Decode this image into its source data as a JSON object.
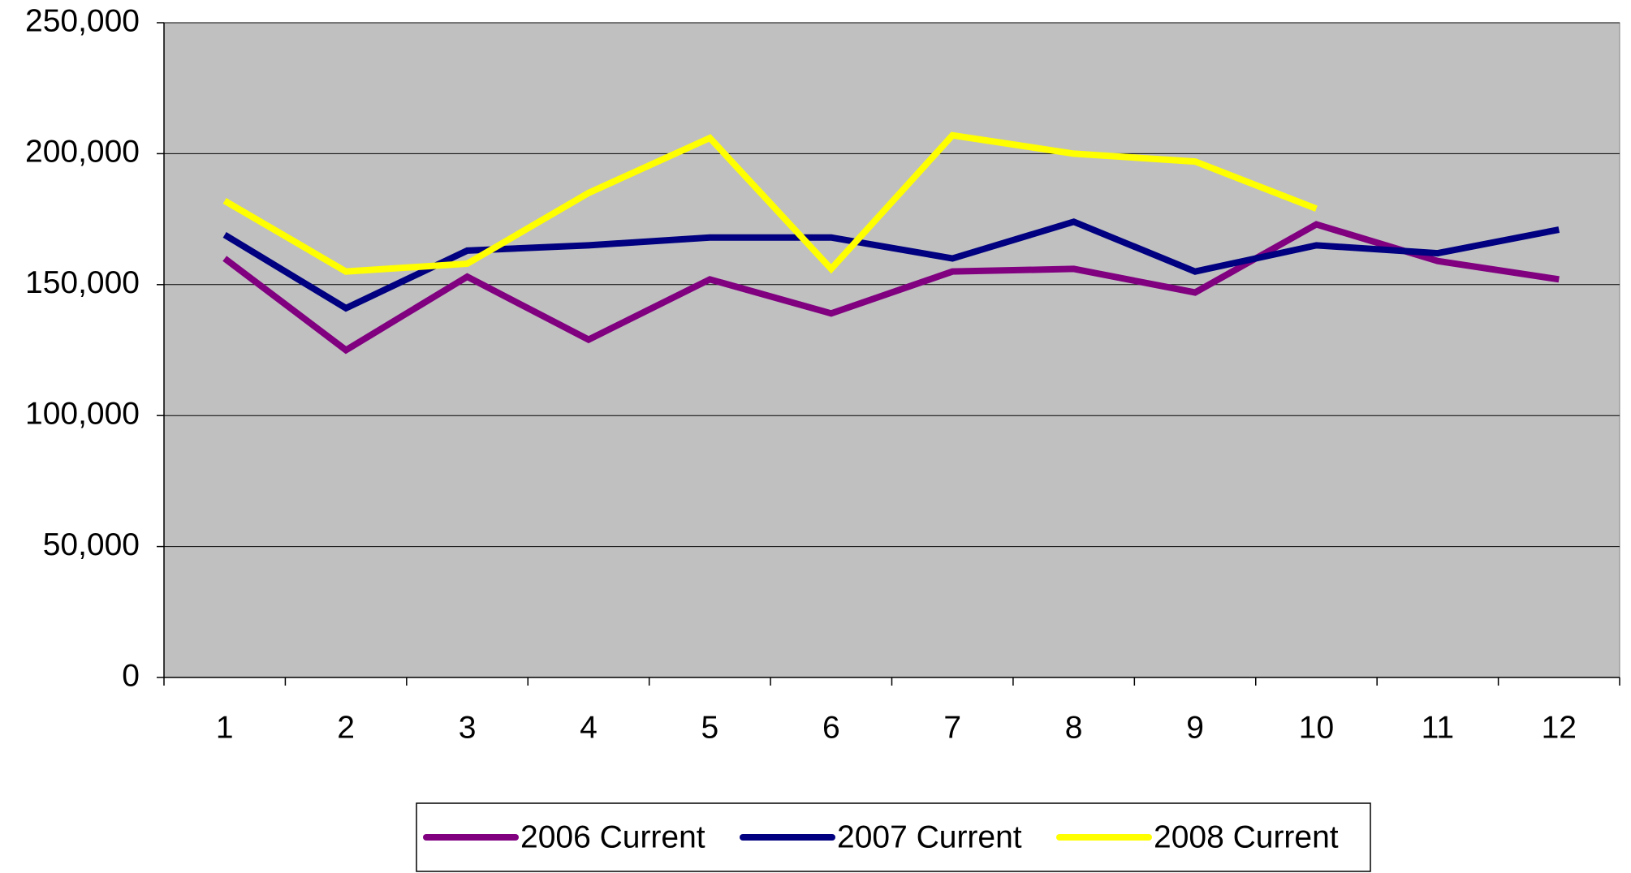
{
  "chart_data": {
    "type": "line",
    "categories": [
      "1",
      "2",
      "3",
      "4",
      "5",
      "6",
      "7",
      "8",
      "9",
      "10",
      "11",
      "12"
    ],
    "series": [
      {
        "name": "2006 Current",
        "color": "#800080",
        "values": [
          160000,
          125000,
          153000,
          129000,
          152000,
          139000,
          155000,
          156000,
          147000,
          173000,
          159000,
          152000
        ]
      },
      {
        "name": "2007 Current",
        "color": "#000080",
        "values": [
          169000,
          141000,
          163000,
          165000,
          168000,
          168000,
          160000,
          174000,
          155000,
          165000,
          162000,
          171000
        ]
      },
      {
        "name": "2008 Current",
        "color": "#ffff00",
        "values": [
          182000,
          155000,
          158000,
          185000,
          206000,
          156000,
          207000,
          200000,
          197000,
          179000,
          null,
          null
        ]
      }
    ],
    "ylim": [
      0,
      250000
    ],
    "yticks": [
      0,
      {
        "value": 50000,
        "label": "50,000"
      },
      {
        "value": 100000,
        "label": "100,000"
      },
      {
        "value": 150000,
        "label": "150,000"
      },
      {
        "value": 200000,
        "label": "200,000"
      },
      {
        "value": 250000,
        "label": "250,000"
      }
    ],
    "grid": true,
    "legend": "bottom",
    "plot_background": "#c0c0c0"
  }
}
